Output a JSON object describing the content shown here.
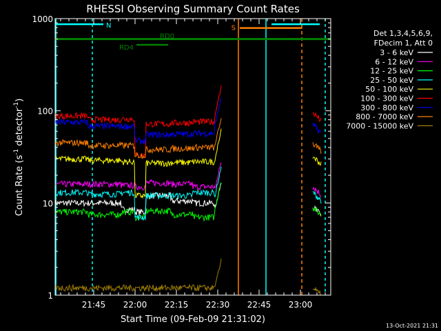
{
  "chart_data": {
    "type": "line",
    "title": "RHESSI Observing Summary Count Rates",
    "xlabel": "Start Time (09-Feb-09 21:31:02)",
    "ylabel_main": "Count Rate (s",
    "ylabel_sup1": "-1",
    "ylabel_mid": " detector",
    "ylabel_sup2": "-1",
    "ylabel_end": ")",
    "yscale": "log",
    "ylim": [
      1,
      1000
    ],
    "xlim_min": [
      0,
      100
    ],
    "xticks": [
      {
        "min": 14,
        "label": "21:45"
      },
      {
        "min": 29,
        "label": "22:00"
      },
      {
        "min": 44,
        "label": "22:15"
      },
      {
        "min": 59,
        "label": "22:30"
      },
      {
        "min": 74,
        "label": "22:45"
      },
      {
        "min": 89,
        "label": "23:00"
      }
    ],
    "yticks": [
      {
        "v": 1,
        "label": "1"
      },
      {
        "v": 10,
        "label": "10"
      },
      {
        "v": 100,
        "label": "100"
      },
      {
        "v": 1000,
        "label": "1000"
      }
    ],
    "legend_header": [
      "Det 1,3,4,5,6,9,",
      "FDecim 1, Att 0"
    ],
    "series": [
      {
        "name": "3 - 6 keV",
        "color": "#ffffff",
        "levels": [
          10,
          10,
          8.5,
          8,
          12,
          10.5,
          10,
          8.5,
          9
        ]
      },
      {
        "name": "6 - 12 keV",
        "color": "#ff00ff",
        "levels": [
          16,
          16,
          15.5,
          15,
          16.5,
          16,
          15,
          14,
          15
        ]
      },
      {
        "name": "12 - 25 keV",
        "color": "#00ff00",
        "levels": [
          8,
          7.5,
          8,
          7,
          8.2,
          7.5,
          7,
          8.5,
          9
        ]
      },
      {
        "name": "25 - 50 keV",
        "color": "#00ffff",
        "levels": [
          13,
          12.5,
          13,
          7,
          12,
          12,
          13,
          12,
          13
        ]
      },
      {
        "name": "50 - 100 keV",
        "color": "#ffff00",
        "levels": [
          30,
          29,
          28,
          12,
          27,
          27.5,
          28,
          30,
          32
        ]
      },
      {
        "name": "100 - 300 keV",
        "color": "#ff0000",
        "levels": [
          88,
          80,
          82,
          33,
          72,
          74,
          76,
          90,
          95
        ]
      },
      {
        "name": "300 - 800 keV",
        "color": "#0000ff",
        "levels": [
          75,
          68,
          68,
          47,
          55,
          56,
          57,
          70,
          70
        ]
      },
      {
        "name": "800 - 7000 keV",
        "color": "#ff8000",
        "levels": [
          45,
          42,
          42,
          33,
          38,
          39,
          40,
          42,
          44
        ]
      },
      {
        "name": "7000 - 15000 keV",
        "color": "#a08000",
        "levels": [
          1.2,
          1.2,
          1.2,
          1.2,
          1.2,
          1.2,
          1.2,
          1.2,
          1.2
        ]
      }
    ],
    "flags": [
      {
        "label": "N",
        "color": "#00ffff",
        "log_level": 870
      },
      {
        "label": "S",
        "color": "#ff8000",
        "log_level": 790
      },
      {
        "label": "RD0",
        "color": "#008000",
        "log_level": 600
      },
      {
        "label": "RD4",
        "color": "#008000",
        "log_level": 520
      }
    ],
    "timestamp": "13-Oct-2021 21:31"
  }
}
